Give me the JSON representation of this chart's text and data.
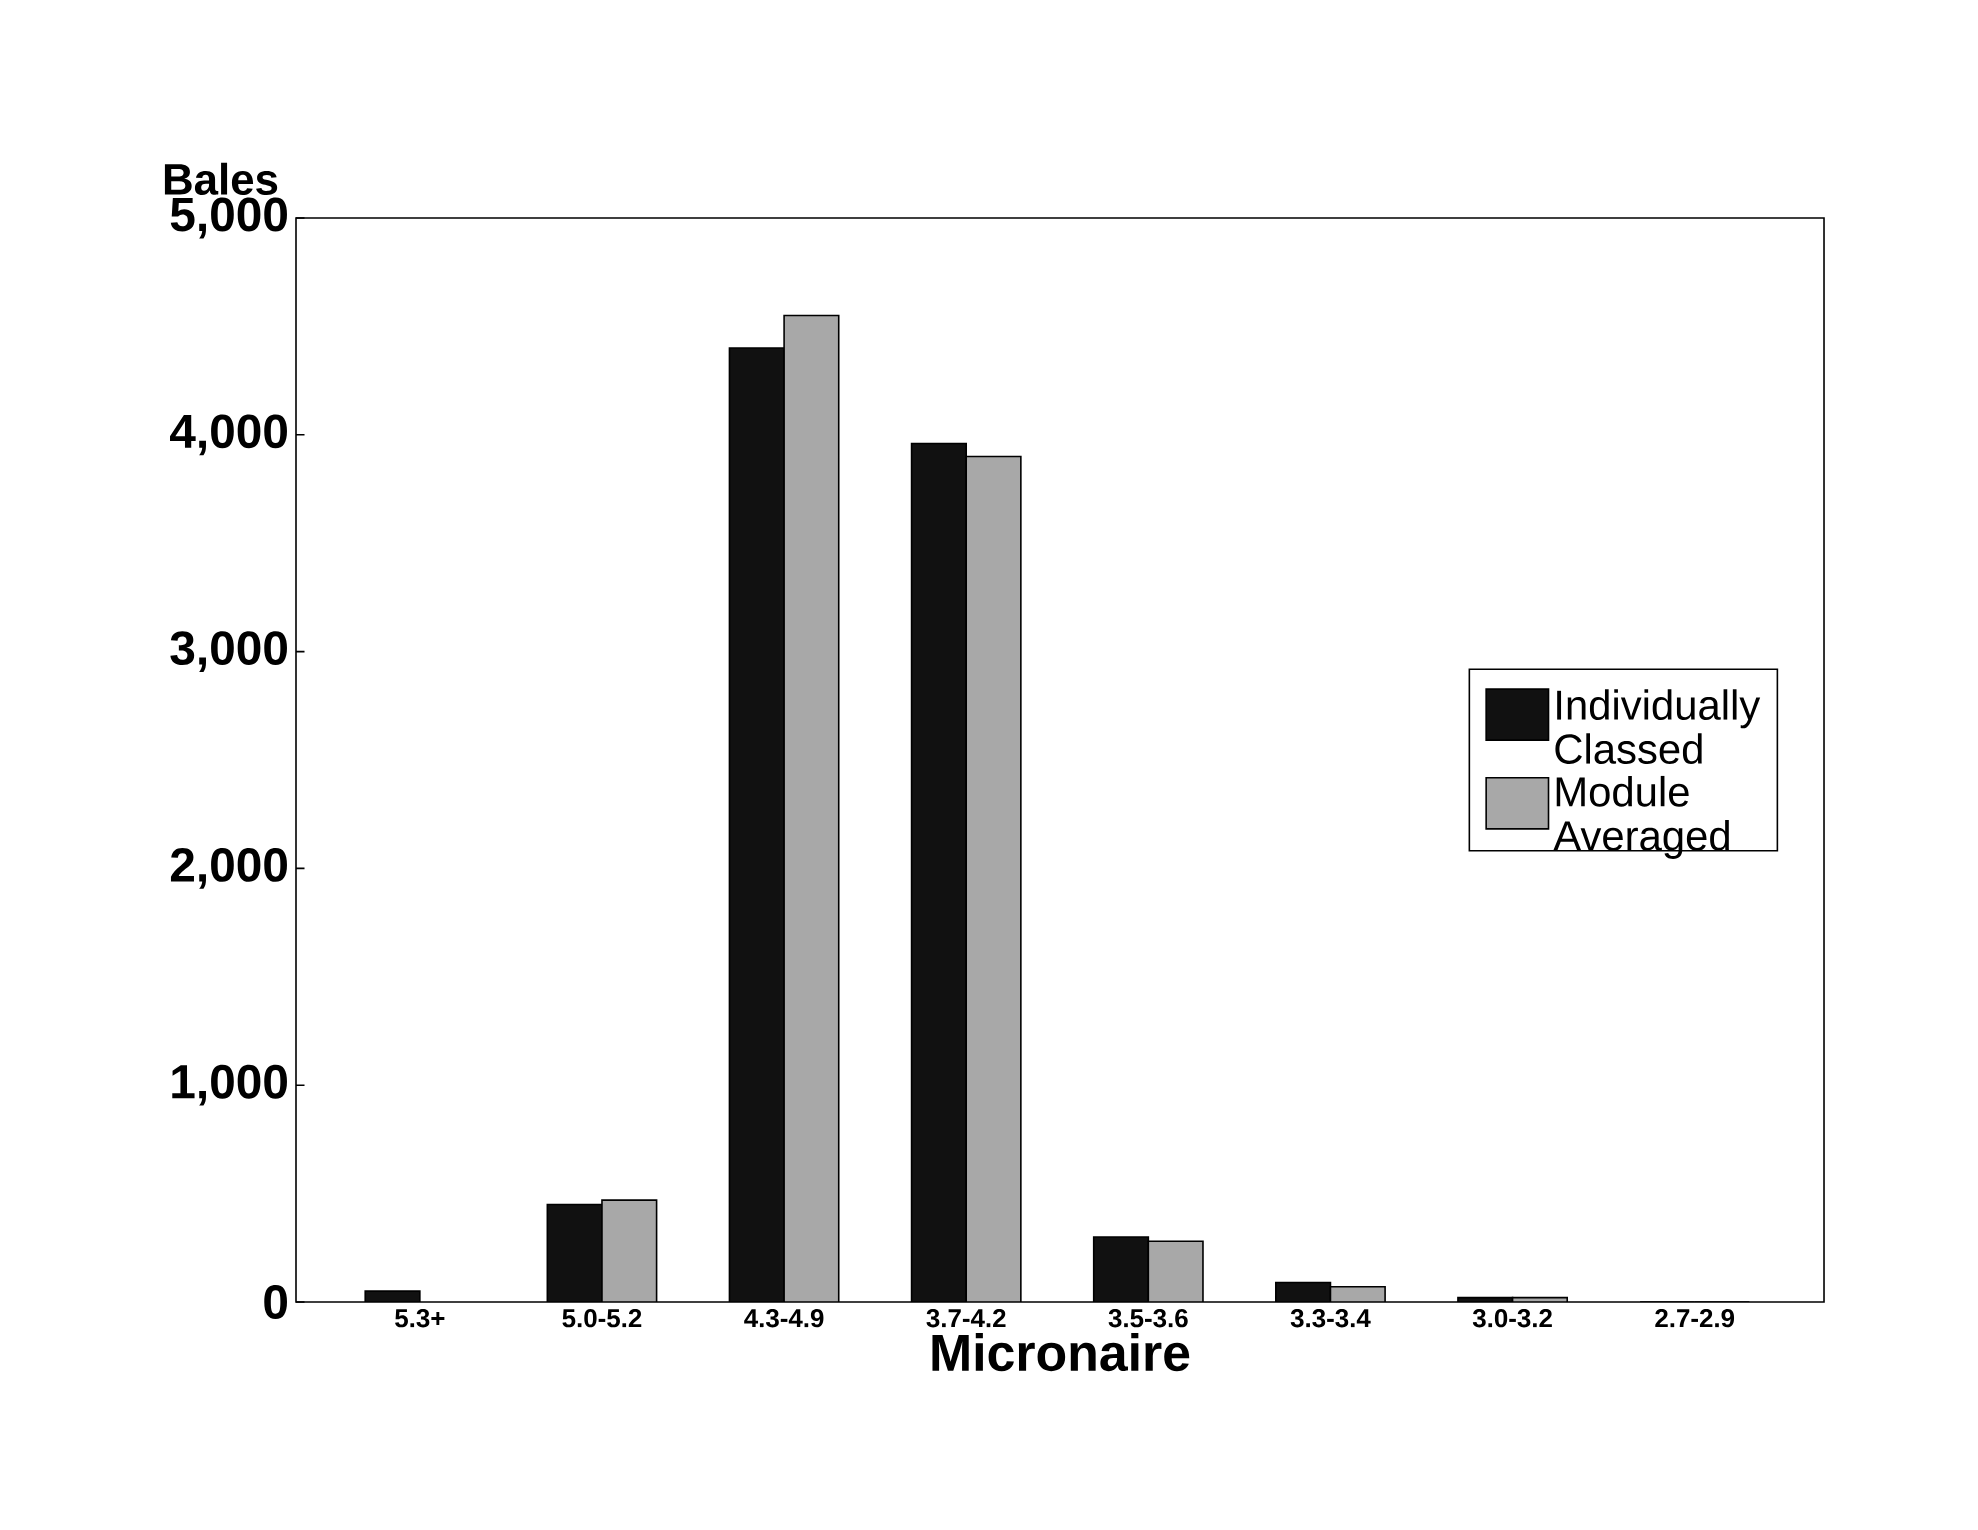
{
  "chart_data": {
    "type": "bar",
    "xlabel": "Micronaire",
    "ylabel": "Bales",
    "categories": [
      "5.3+",
      "5.0-5.2",
      "4.3-4.9",
      "3.7-4.2",
      "3.5-3.6",
      "3.3-3.4",
      "3.0-3.2",
      "2.7-2.9"
    ],
    "series": [
      {
        "name": "Individually Classed",
        "color": "#111111",
        "values": [
          50,
          450,
          4400,
          3960,
          300,
          90,
          20,
          0
        ]
      },
      {
        "name": "Module Averaged",
        "color": "#a8a8a8",
        "values": [
          null,
          470,
          4550,
          3900,
          280,
          70,
          20,
          0
        ]
      }
    ],
    "ylim": [
      0,
      5000
    ],
    "yticks": [
      {
        "value": 0,
        "label": "0"
      },
      {
        "value": 1000,
        "label": "1,000"
      },
      {
        "value": 2000,
        "label": "2,000"
      },
      {
        "value": 3000,
        "label": "3,000"
      },
      {
        "value": 4000,
        "label": "4,000"
      },
      {
        "value": 5000,
        "label": "5,000"
      }
    ],
    "legend": "right",
    "grid": false
  }
}
